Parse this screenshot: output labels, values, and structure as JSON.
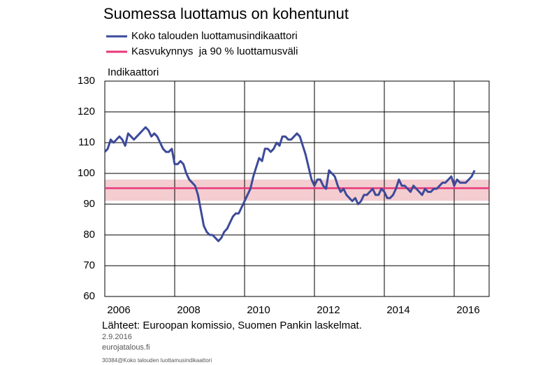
{
  "chart_data": {
    "type": "line",
    "title": "Suomessa luottamus on kohentunut",
    "y_label": "Indikaattori",
    "source": "Lähteet: Euroopan komissio, Suomen Pankin laskelmat.",
    "date": "2.9.2016",
    "site": "eurojatalous.fi",
    "code": "30384@Koko talouden luottamusindikaattori",
    "ylim": [
      60,
      130
    ],
    "yticks": [
      60,
      70,
      80,
      90,
      100,
      110,
      120,
      130
    ],
    "xlim": [
      2006,
      2017
    ],
    "xticks": [
      {
        "value": 2006.4,
        "label": "2006"
      },
      {
        "value": 2008.4,
        "label": "2008"
      },
      {
        "value": 2010.4,
        "label": "2010"
      },
      {
        "value": 2012.4,
        "label": "2012"
      },
      {
        "value": 2014.4,
        "label": "2014"
      },
      {
        "value": 2016.4,
        "label": "2016"
      }
    ],
    "xgrid": [
      2008,
      2010,
      2012,
      2014,
      2016
    ],
    "reference": {
      "name": "Kasvukynnys  ja 90 % luottamusväli",
      "color": "#e8367a",
      "band_color": "#f3cdd0",
      "value": 95.2,
      "band": [
        91.1,
        98.0
      ]
    },
    "series": [
      {
        "name": "Koko talouden luottamusindikaattori",
        "color": "#3c4a9a",
        "x": [
          2006.0,
          2006.083,
          2006.167,
          2006.25,
          2006.333,
          2006.417,
          2006.5,
          2006.583,
          2006.667,
          2006.75,
          2006.833,
          2006.917,
          2007.0,
          2007.083,
          2007.167,
          2007.25,
          2007.333,
          2007.417,
          2007.5,
          2007.583,
          2007.667,
          2007.75,
          2007.833,
          2007.917,
          2008.0,
          2008.083,
          2008.167,
          2008.25,
          2008.333,
          2008.417,
          2008.5,
          2008.583,
          2008.667,
          2008.75,
          2008.833,
          2008.917,
          2009.0,
          2009.083,
          2009.167,
          2009.25,
          2009.333,
          2009.417,
          2009.5,
          2009.583,
          2009.667,
          2009.75,
          2009.833,
          2009.917,
          2010.0,
          2010.083,
          2010.167,
          2010.25,
          2010.333,
          2010.417,
          2010.5,
          2010.583,
          2010.667,
          2010.75,
          2010.833,
          2010.917,
          2011.0,
          2011.083,
          2011.167,
          2011.25,
          2011.333,
          2011.417,
          2011.5,
          2011.583,
          2011.667,
          2011.75,
          2011.833,
          2011.917,
          2012.0,
          2012.083,
          2012.167,
          2012.25,
          2012.333,
          2012.417,
          2012.5,
          2012.583,
          2012.667,
          2012.75,
          2012.833,
          2012.917,
          2013.0,
          2013.083,
          2013.167,
          2013.25,
          2013.333,
          2013.417,
          2013.5,
          2013.583,
          2013.667,
          2013.75,
          2013.833,
          2013.917,
          2014.0,
          2014.083,
          2014.167,
          2014.25,
          2014.333,
          2014.417,
          2014.5,
          2014.583,
          2014.667,
          2014.75,
          2014.833,
          2014.917,
          2015.0,
          2015.083,
          2015.167,
          2015.25,
          2015.333,
          2015.417,
          2015.5,
          2015.583,
          2015.667,
          2015.75,
          2015.833,
          2015.917,
          2016.0,
          2016.083,
          2016.167,
          2016.25,
          2016.333,
          2016.417,
          2016.5,
          2016.583
        ],
        "values": [
          107,
          108,
          111,
          110,
          111,
          112,
          111,
          109,
          113,
          112,
          111,
          112,
          113,
          114,
          115,
          114,
          112,
          113,
          112,
          110,
          108,
          107,
          107,
          108,
          103,
          103,
          104,
          103,
          100,
          98,
          97,
          96,
          93,
          88,
          83,
          81,
          80,
          80,
          79,
          78,
          79,
          81,
          82,
          84,
          86,
          87,
          87,
          89,
          91,
          93,
          95,
          99,
          102,
          105,
          104,
          108,
          108,
          107,
          108,
          110,
          109,
          112,
          112,
          111,
          111,
          112,
          113,
          112,
          109,
          106,
          102,
          98,
          96,
          98,
          98,
          96,
          95,
          101,
          100,
          99,
          96,
          94,
          95,
          93,
          92,
          91,
          92,
          90,
          91,
          93,
          93,
          94,
          95,
          93,
          93,
          95,
          94,
          92,
          92,
          93,
          95,
          98,
          96,
          96,
          95,
          94,
          96,
          95,
          94,
          93,
          95,
          94,
          94,
          95,
          95,
          96,
          97,
          97,
          98,
          99,
          96,
          98,
          97,
          97,
          97,
          98,
          99,
          101
        ]
      }
    ]
  }
}
